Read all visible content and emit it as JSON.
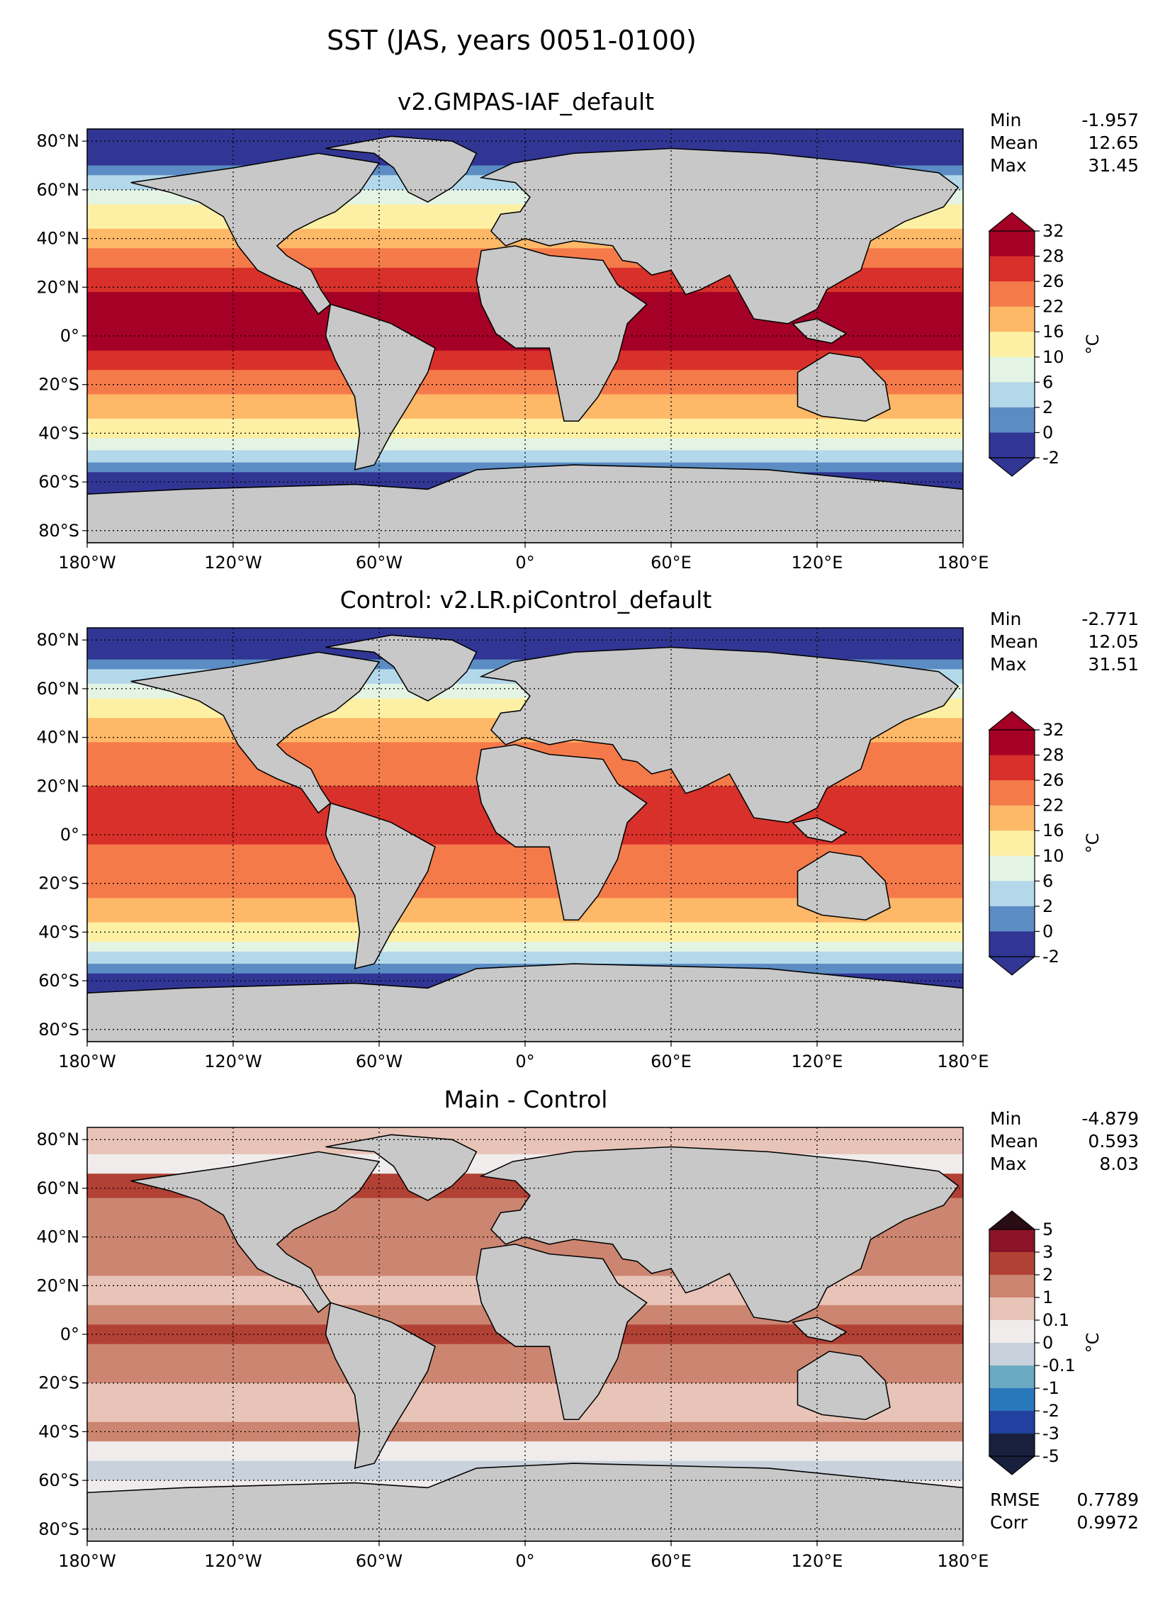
{
  "figure": {
    "title": "SST (JAS, years 0051-0100)"
  },
  "colors": {
    "land": "#c8c8c8",
    "coast": "#000000",
    "abs_palette": [
      "#313695",
      "#5b8dc4",
      "#b3d8ea",
      "#e4f4e4",
      "#fdf0a4",
      "#fdb868",
      "#f57a4a",
      "#d8302a",
      "#a50026"
    ],
    "diff_palette": [
      "#18203e",
      "#2140a0",
      "#2a78bc",
      "#6aaac2",
      "#c9d2dc",
      "#f0ecec",
      "#e8c4b8",
      "#cc8570",
      "#b24135",
      "#8a1328",
      "#2a0c14"
    ]
  },
  "map_axes": {
    "xticks": [
      "180°W",
      "120°W",
      "60°W",
      "0°",
      "60°E",
      "120°E",
      "180°E"
    ],
    "yticks": [
      "80°N",
      "60°N",
      "40°N",
      "20°N",
      "0°",
      "20°S",
      "40°S",
      "60°S",
      "80°S"
    ]
  },
  "chart_data": [
    {
      "type": "heatmap",
      "panel": "main",
      "title": "v2.GMPAS-IAF_default",
      "variable": "SST",
      "units": "°C",
      "xlim": [
        -180,
        180
      ],
      "ylim": [
        -85,
        85
      ],
      "stats": [
        {
          "label": "Min",
          "value": "-1.957"
        },
        {
          "label": "Mean",
          "value": "12.65"
        },
        {
          "label": "Max",
          "value": "31.45"
        }
      ],
      "colorbar": {
        "levels": [
          "32",
          "28",
          "26",
          "22",
          "16",
          "10",
          "6",
          "2",
          "0",
          "-2"
        ],
        "unit_label": "°C",
        "extend": "both"
      },
      "zonal_bands": [
        {
          "lat": [
            70,
            85
          ],
          "level": 0
        },
        {
          "lat": [
            66,
            70
          ],
          "level": 1
        },
        {
          "lat": [
            60,
            66
          ],
          "level": 2
        },
        {
          "lat": [
            54,
            60
          ],
          "level": 3
        },
        {
          "lat": [
            44,
            54
          ],
          "level": 4
        },
        {
          "lat": [
            36,
            44
          ],
          "level": 5
        },
        {
          "lat": [
            28,
            36
          ],
          "level": 6
        },
        {
          "lat": [
            18,
            28
          ],
          "level": 7
        },
        {
          "lat": [
            -6,
            18
          ],
          "level": 8
        },
        {
          "lat": [
            -14,
            -6
          ],
          "level": 7
        },
        {
          "lat": [
            -24,
            -14
          ],
          "level": 6
        },
        {
          "lat": [
            -34,
            -24
          ],
          "level": 5
        },
        {
          "lat": [
            -42,
            -34
          ],
          "level": 4
        },
        {
          "lat": [
            -47,
            -42
          ],
          "level": 3
        },
        {
          "lat": [
            -52,
            -47
          ],
          "level": 2
        },
        {
          "lat": [
            -56,
            -52
          ],
          "level": 1
        },
        {
          "lat": [
            -85,
            -56
          ],
          "level": 0
        }
      ]
    },
    {
      "type": "heatmap",
      "panel": "control",
      "title": "Control: v2.LR.piControl_default",
      "variable": "SST",
      "units": "°C",
      "xlim": [
        -180,
        180
      ],
      "ylim": [
        -85,
        85
      ],
      "stats": [
        {
          "label": "Min",
          "value": "-2.771"
        },
        {
          "label": "Mean",
          "value": "12.05"
        },
        {
          "label": "Max",
          "value": "31.51"
        }
      ],
      "colorbar": {
        "levels": [
          "32",
          "28",
          "26",
          "22",
          "16",
          "10",
          "6",
          "2",
          "0",
          "-2"
        ],
        "unit_label": "°C",
        "extend": "both"
      },
      "zonal_bands": [
        {
          "lat": [
            72,
            85
          ],
          "level": 0
        },
        {
          "lat": [
            68,
            72
          ],
          "level": 1
        },
        {
          "lat": [
            62,
            68
          ],
          "level": 2
        },
        {
          "lat": [
            56,
            62
          ],
          "level": 3
        },
        {
          "lat": [
            48,
            56
          ],
          "level": 4
        },
        {
          "lat": [
            38,
            48
          ],
          "level": 5
        },
        {
          "lat": [
            30,
            38
          ],
          "level": 6
        },
        {
          "lat": [
            20,
            30
          ],
          "level": 6
        },
        {
          "lat": [
            -4,
            20
          ],
          "level": 7
        },
        {
          "lat": [
            -12,
            -4
          ],
          "level": 6
        },
        {
          "lat": [
            -26,
            -12
          ],
          "level": 6
        },
        {
          "lat": [
            -36,
            -26
          ],
          "level": 5
        },
        {
          "lat": [
            -44,
            -36
          ],
          "level": 4
        },
        {
          "lat": [
            -48,
            -44
          ],
          "level": 3
        },
        {
          "lat": [
            -53,
            -48
          ],
          "level": 2
        },
        {
          "lat": [
            -57,
            -53
          ],
          "level": 1
        },
        {
          "lat": [
            -85,
            -57
          ],
          "level": 0
        }
      ]
    },
    {
      "type": "heatmap",
      "panel": "diff",
      "title": "Main - Control",
      "variable": "SST difference",
      "units": "°C",
      "xlim": [
        -180,
        180
      ],
      "ylim": [
        -85,
        85
      ],
      "stats": [
        {
          "label": "Min",
          "value": "-4.879"
        },
        {
          "label": "Mean",
          "value": "0.593"
        },
        {
          "label": "Max",
          "value": "8.03"
        }
      ],
      "extra_stats": [
        {
          "label": "RMSE",
          "value": "0.7789"
        },
        {
          "label": "Corr",
          "value": "0.9972"
        }
      ],
      "colorbar": {
        "levels": [
          "5",
          "3",
          "2",
          "1",
          "0.1",
          "0",
          "-0.1",
          "-1",
          "-2",
          "-3",
          "-5"
        ],
        "unit_label": "°C",
        "extend": "both"
      },
      "zonal_bands": [
        {
          "lat": [
            74,
            85
          ],
          "level": 6
        },
        {
          "lat": [
            66,
            74
          ],
          "level": 5
        },
        {
          "lat": [
            56,
            66
          ],
          "level": 8
        },
        {
          "lat": [
            44,
            56
          ],
          "level": 7
        },
        {
          "lat": [
            24,
            44
          ],
          "level": 7
        },
        {
          "lat": [
            12,
            24
          ],
          "level": 6
        },
        {
          "lat": [
            4,
            12
          ],
          "level": 7
        },
        {
          "lat": [
            -4,
            4
          ],
          "level": 8
        },
        {
          "lat": [
            -20,
            -4
          ],
          "level": 7
        },
        {
          "lat": [
            -36,
            -20
          ],
          "level": 6
        },
        {
          "lat": [
            -44,
            -36
          ],
          "level": 7
        },
        {
          "lat": [
            -52,
            -44
          ],
          "level": 5
        },
        {
          "lat": [
            -60,
            -52
          ],
          "level": 4
        },
        {
          "lat": [
            -85,
            -60
          ],
          "level": 5
        }
      ]
    }
  ]
}
